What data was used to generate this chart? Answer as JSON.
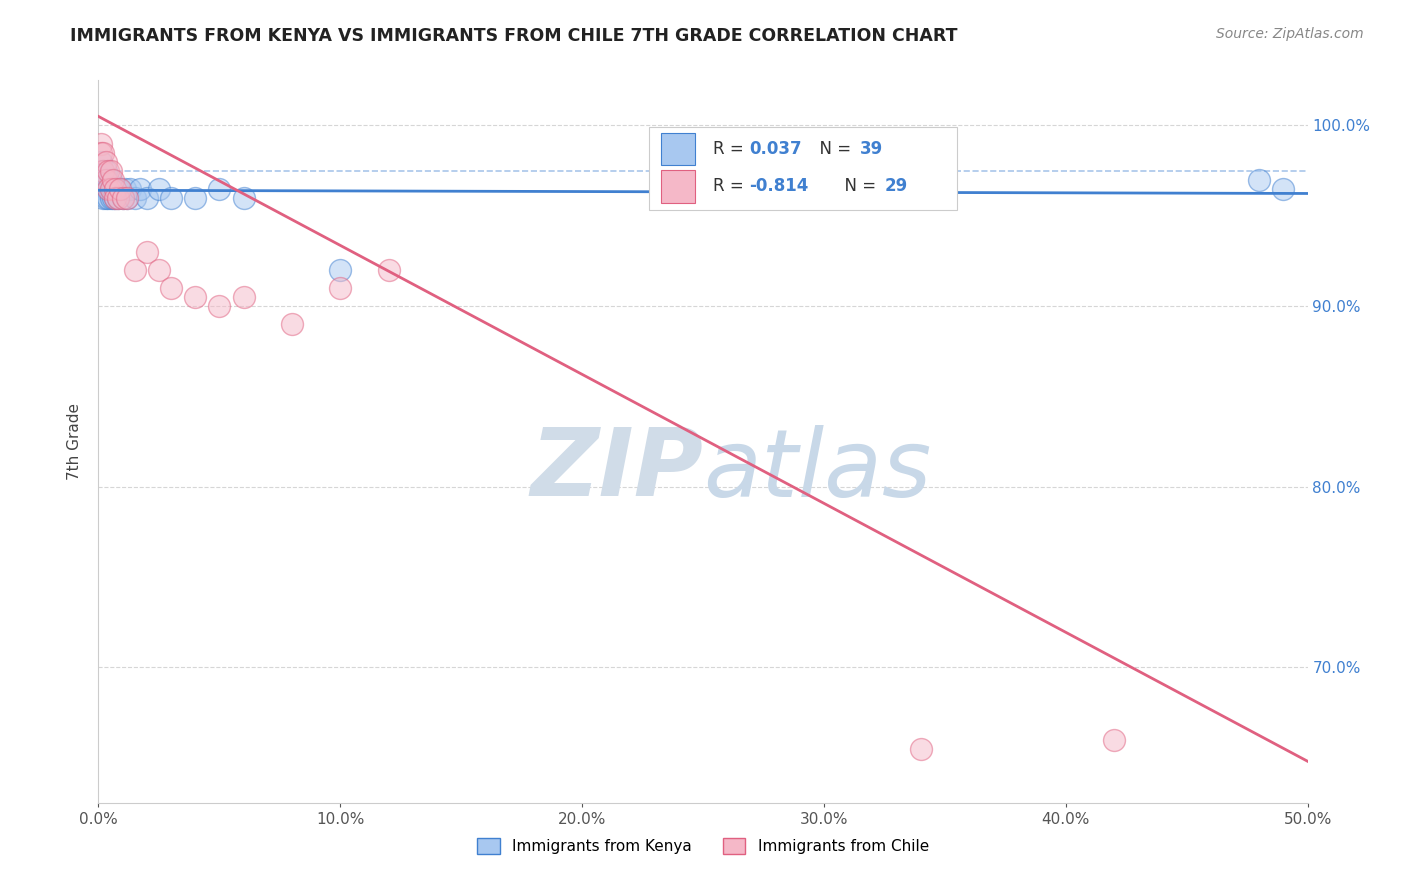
{
  "title": "IMMIGRANTS FROM KENYA VS IMMIGRANTS FROM CHILE 7TH GRADE CORRELATION CHART",
  "source": "Source: ZipAtlas.com",
  "ylabel": "7th Grade",
  "xlim": [
    0.0,
    0.5
  ],
  "ylim": [
    0.625,
    1.025
  ],
  "xticks": [
    0.0,
    0.1,
    0.2,
    0.3,
    0.4,
    0.5
  ],
  "xtick_labels": [
    "0.0%",
    "10.0%",
    "20.0%",
    "30.0%",
    "40.0%",
    "50.0%"
  ],
  "yticks": [
    0.7,
    0.8,
    0.9,
    1.0
  ],
  "ytick_labels": [
    "70.0%",
    "80.0%",
    "90.0%",
    "100.0%"
  ],
  "legend_label1": "Immigrants from Kenya",
  "legend_label2": "Immigrants from Chile",
  "r1": 0.037,
  "n1": 39,
  "r2": -0.814,
  "n2": 29,
  "color_kenya": "#a8c8f0",
  "color_chile": "#f5b8c8",
  "trendline_kenya": "#4080d0",
  "trendline_chile": "#e06080",
  "kenya_x": [
    0.001,
    0.001,
    0.001,
    0.002,
    0.002,
    0.002,
    0.002,
    0.003,
    0.003,
    0.003,
    0.003,
    0.004,
    0.004,
    0.004,
    0.005,
    0.005,
    0.005,
    0.006,
    0.006,
    0.007,
    0.007,
    0.008,
    0.008,
    0.009,
    0.01,
    0.011,
    0.012,
    0.013,
    0.015,
    0.017,
    0.02,
    0.025,
    0.03,
    0.04,
    0.05,
    0.06,
    0.1,
    0.48,
    0.49
  ],
  "kenya_y": [
    0.975,
    0.98,
    0.97,
    0.975,
    0.97,
    0.965,
    0.96,
    0.975,
    0.97,
    0.965,
    0.96,
    0.97,
    0.965,
    0.96,
    0.97,
    0.965,
    0.96,
    0.965,
    0.96,
    0.965,
    0.96,
    0.965,
    0.96,
    0.965,
    0.96,
    0.965,
    0.96,
    0.965,
    0.96,
    0.965,
    0.96,
    0.965,
    0.96,
    0.96,
    0.965,
    0.96,
    0.92,
    0.97,
    0.965
  ],
  "chile_x": [
    0.001,
    0.001,
    0.002,
    0.002,
    0.003,
    0.003,
    0.004,
    0.004,
    0.005,
    0.005,
    0.006,
    0.007,
    0.007,
    0.008,
    0.009,
    0.01,
    0.012,
    0.015,
    0.02,
    0.025,
    0.03,
    0.04,
    0.05,
    0.06,
    0.08,
    0.1,
    0.12,
    0.34,
    0.42
  ],
  "chile_y": [
    0.99,
    0.985,
    0.985,
    0.975,
    0.98,
    0.97,
    0.975,
    0.965,
    0.975,
    0.965,
    0.97,
    0.965,
    0.96,
    0.96,
    0.965,
    0.96,
    0.96,
    0.92,
    0.93,
    0.92,
    0.91,
    0.905,
    0.9,
    0.905,
    0.89,
    0.91,
    0.92,
    0.655,
    0.66
  ],
  "background_color": "#ffffff",
  "watermark_zip": "ZIP",
  "watermark_atlas": "atlas",
  "watermark_color_zip": "#d0dce8",
  "watermark_color_atlas": "#c8d8e8",
  "grid_color": "#cccccc",
  "top_dashed_color": "#a0c0e8"
}
